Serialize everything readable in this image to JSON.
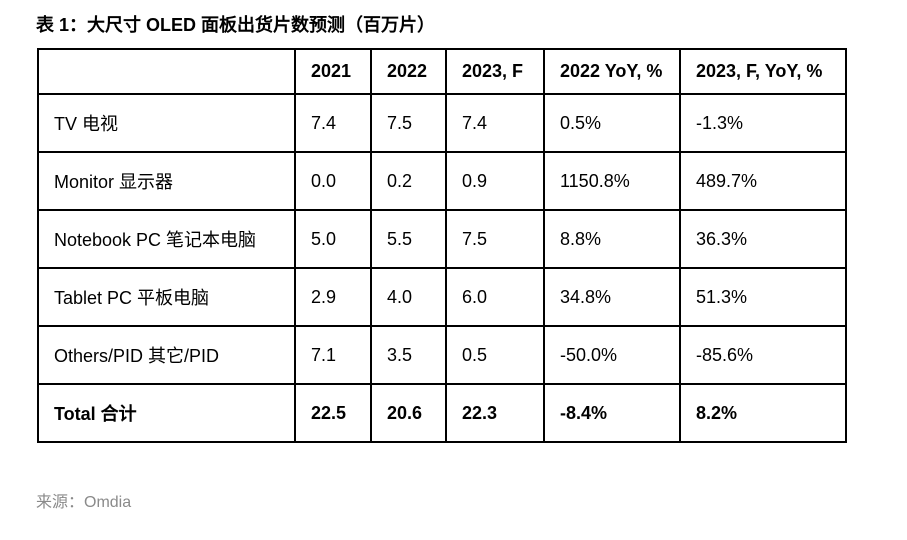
{
  "title": "表 1：大尺寸 OLED 面板出货片数预测（百万片）",
  "source": "来源：Omdia",
  "colors": {
    "border": "#000000",
    "text": "#000000",
    "source_text": "#8a8a8a",
    "background": "#ffffff"
  },
  "table": {
    "columns": [
      "",
      "2021",
      "2022",
      "2023, F",
      "2022 YoY, %",
      "2023, F, YoY, %"
    ],
    "rows": [
      {
        "label": "TV 电视",
        "values": [
          "7.4",
          "7.5",
          "7.4",
          "0.5%",
          "-1.3%"
        ]
      },
      {
        "label": "Monitor 显示器",
        "values": [
          "0.0",
          "0.2",
          "0.9",
          "1150.8%",
          "489.7%"
        ]
      },
      {
        "label": "Notebook PC 笔记本电脑",
        "values": [
          "5.0",
          "5.5",
          "7.5",
          "8.8%",
          "36.3%"
        ]
      },
      {
        "label": "Tablet PC 平板电脑",
        "values": [
          "2.9",
          "4.0",
          "6.0",
          "34.8%",
          "51.3%"
        ]
      },
      {
        "label": "Others/PID 其它/PID",
        "values": [
          "7.1",
          "3.5",
          "0.5",
          "-50.0%",
          "-85.6%"
        ]
      },
      {
        "label": "Total  合计",
        "values": [
          "22.5",
          "20.6",
          "22.3",
          "-8.4%",
          "8.2%"
        ]
      }
    ]
  }
}
